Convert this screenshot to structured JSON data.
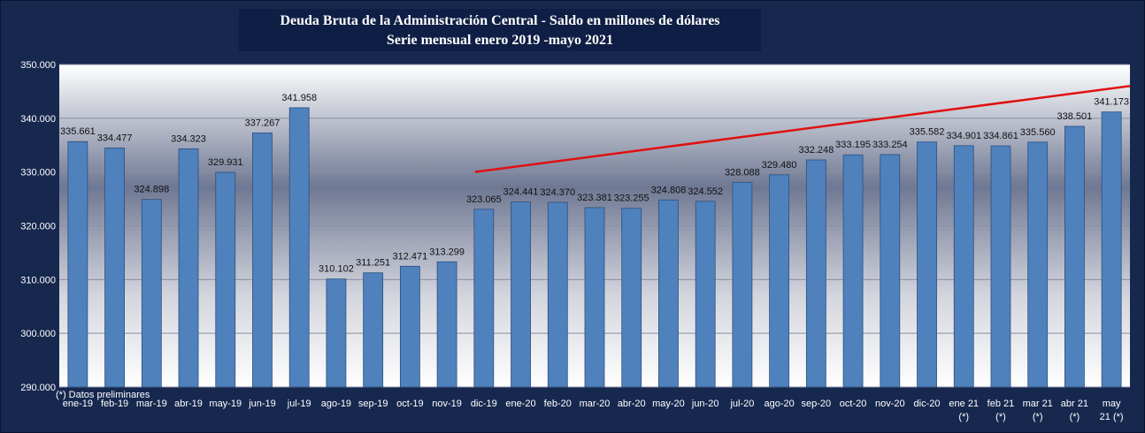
{
  "chart_data": {
    "type": "bar",
    "title": "Deuda Bruta de la Administración Central - Saldo en millones de dólares",
    "subtitle": "Serie mensual enero 2019 -mayo 2021",
    "note": "(*) Datos preliminares",
    "categories": [
      [
        "ene-19"
      ],
      [
        "feb-19"
      ],
      [
        "mar-19"
      ],
      [
        "abr-19"
      ],
      [
        "may-19"
      ],
      [
        "jun-19"
      ],
      [
        "jul-19"
      ],
      [
        "ago-19"
      ],
      [
        "sep-19"
      ],
      [
        "oct-19"
      ],
      [
        "nov-19"
      ],
      [
        "dic-19"
      ],
      [
        "ene-20"
      ],
      [
        "feb-20"
      ],
      [
        "mar-20"
      ],
      [
        "abr-20"
      ],
      [
        "may-20"
      ],
      [
        "jun-20"
      ],
      [
        "jul-20"
      ],
      [
        "ago-20"
      ],
      [
        "sep-20"
      ],
      [
        "oct-20"
      ],
      [
        "nov-20"
      ],
      [
        "dic-20"
      ],
      [
        "ene 21",
        "(*)"
      ],
      [
        "feb 21",
        "(*)"
      ],
      [
        "mar 21",
        "(*)"
      ],
      [
        "abr 21",
        "(*)"
      ],
      [
        "may",
        "21 (*)"
      ]
    ],
    "values": [
      335661,
      334477,
      324898,
      334323,
      329931,
      337267,
      341958,
      310102,
      311251,
      312471,
      313299,
      323065,
      324441,
      324370,
      323381,
      323255,
      324808,
      324552,
      328088,
      329480,
      332248,
      333195,
      333254,
      335582,
      334901,
      334861,
      335560,
      338501,
      341173
    ],
    "value_labels": [
      "335.661",
      "334.477",
      "324.898",
      "334.323",
      "329.931",
      "337.267",
      "341.958",
      "310.102",
      "311.251",
      "312.471",
      "313.299",
      "323.065",
      "324.441",
      "324.370",
      "323.381",
      "323.255",
      "324.808",
      "324.552",
      "328.088",
      "329.480",
      "332.248",
      "333.195",
      "333.254",
      "335.582",
      "334.901",
      "334.861",
      "335.560",
      "338.501",
      "341.173"
    ],
    "ylim": [
      290000,
      350000
    ],
    "yticks": [
      290000,
      300000,
      310000,
      320000,
      330000,
      340000,
      350000
    ],
    "ytick_labels": [
      "290.000",
      "300.000",
      "310.000",
      "320.000",
      "330.000",
      "340.000",
      "350.000"
    ],
    "grid": true,
    "trendline": {
      "color": "#e01010",
      "start": 330000,
      "end": 346000
    },
    "colors": {
      "bar": "#4f81bd",
      "bar_edge": "#2c4f7c",
      "background": "#17284f",
      "text": "#ffffff"
    }
  }
}
